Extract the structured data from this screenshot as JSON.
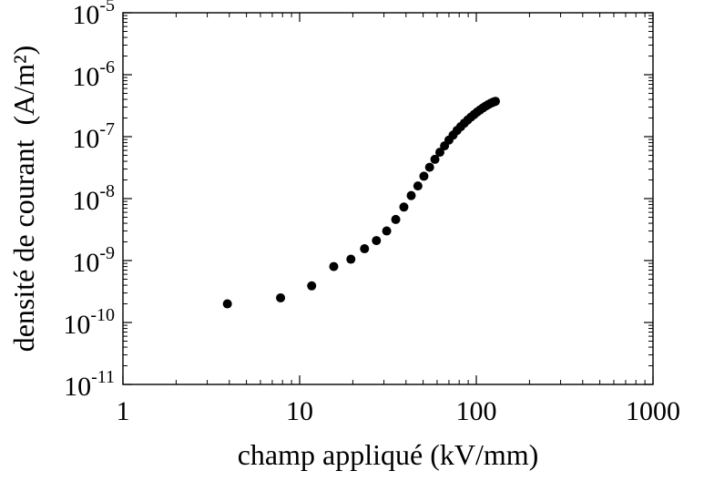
{
  "chart_data": {
    "type": "scatter",
    "title": "",
    "xlabel": "champ appliqué (kV/mm)",
    "ylabel": "densité de courant  (A/m²)",
    "xscale": "log",
    "yscale": "log",
    "xlim": [
      1,
      1000
    ],
    "ylim": [
      1e-11,
      1e-05
    ],
    "grid": false,
    "legend": "none",
    "marker_color": "#000000",
    "x_ticks": [
      {
        "value": 1,
        "label": "1"
      },
      {
        "value": 10,
        "label": "10"
      },
      {
        "value": 100,
        "label": "100"
      },
      {
        "value": 1000,
        "label": "1000"
      }
    ],
    "y_ticks": [
      {
        "value": 1e-11,
        "base": "10",
        "exp": "-11"
      },
      {
        "value": 1e-10,
        "base": "10",
        "exp": "-10"
      },
      {
        "value": 1e-09,
        "base": "10",
        "exp": "-9"
      },
      {
        "value": 1e-08,
        "base": "10",
        "exp": "-8"
      },
      {
        "value": 1e-07,
        "base": "10",
        "exp": "-7"
      },
      {
        "value": 1e-06,
        "base": "10",
        "exp": "-6"
      },
      {
        "value": 1e-05,
        "base": "10",
        "exp": "-5"
      }
    ],
    "series": [
      {
        "points": [
          [
            3.9,
            2e-10
          ],
          [
            7.8,
            2.5e-10
          ],
          [
            11.7,
            3.9e-10
          ],
          [
            15.6,
            8e-10
          ],
          [
            19.5,
            1.05e-09
          ],
          [
            23.3,
            1.55e-09
          ],
          [
            27.2,
            2.1e-09
          ],
          [
            31.1,
            3e-09
          ],
          [
            35.0,
            4.6e-09
          ],
          [
            38.9,
            7.3e-09
          ],
          [
            42.8,
            1.12e-08
          ],
          [
            46.7,
            1.6e-08
          ],
          [
            50.5,
            2.3e-08
          ],
          [
            54.4,
            3.2e-08
          ],
          [
            58.3,
            4.3e-08
          ],
          [
            62.2,
            5.6e-08
          ],
          [
            66.1,
            7.1e-08
          ],
          [
            70.0,
            8.8e-08
          ],
          [
            73.9,
            1.06e-07
          ],
          [
            77.8,
            1.26e-07
          ],
          [
            81.6,
            1.45e-07
          ],
          [
            85.5,
            1.65e-07
          ],
          [
            89.4,
            1.86e-07
          ],
          [
            93.3,
            2.07e-07
          ],
          [
            97.2,
            2.28e-07
          ],
          [
            101.1,
            2.5e-07
          ],
          [
            105.0,
            2.7e-07
          ],
          [
            108.8,
            2.9e-07
          ],
          [
            112.7,
            3.1e-07
          ],
          [
            116.6,
            3.28e-07
          ],
          [
            120.5,
            3.45e-07
          ],
          [
            124.4,
            3.6e-07
          ],
          [
            128.3,
            3.72e-07
          ]
        ]
      }
    ]
  }
}
